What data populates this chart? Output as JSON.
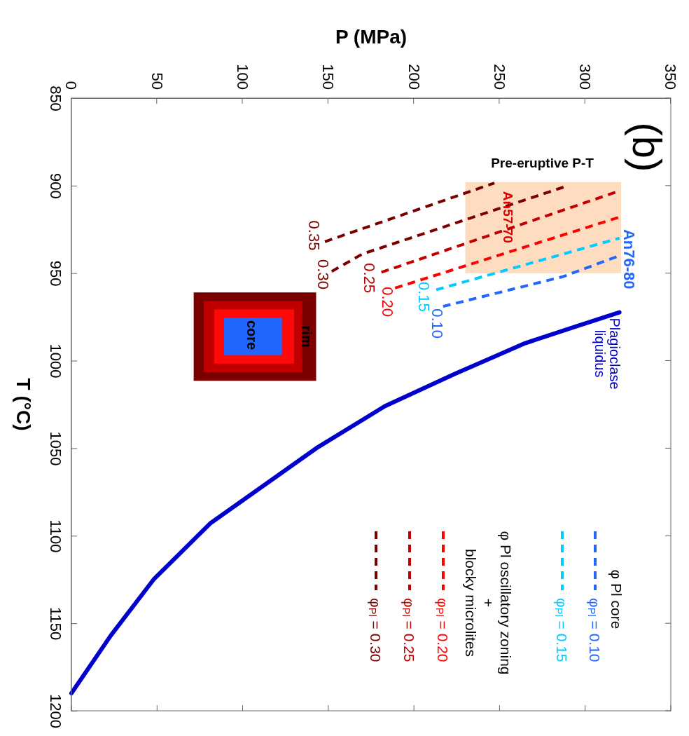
{
  "chart_data": {
    "type": "line",
    "xlabel": "P (MPa)",
    "ylabel": "T (°C)",
    "xlim": [
      0,
      350
    ],
    "ylim": [
      1200,
      850
    ],
    "xticks": [
      0,
      50,
      100,
      150,
      200,
      250,
      300,
      350
    ],
    "yticks": [
      850,
      900,
      950,
      1000,
      1050,
      1100,
      1150,
      1200
    ],
    "legend": "bottom right",
    "legend_title": "φ Pl core",
    "series": [
      {
        "x": [
          230,
          321
        ],
        "values": [
          null,
          null
        ],
        "lower": [
          898,
          898
        ],
        "upper": [
          950,
          950
        ],
        "color": "#fddcc0"
      },
      {
        "name": "φ$_{Pl}$ = 0.10",
        "color": "#2266ff",
        "line_style": "dashed",
        "x": [
          217,
          287,
          320
        ],
        "values": [
          969,
          952,
          940
        ]
      },
      {
        "name": "φ$_{Pl}$ = 0.15",
        "color": "#00ccff",
        "line_style": "dashed",
        "x": [
          213,
          320
        ],
        "values": [
          959.5,
          930
        ]
      },
      {
        "name": "φ$_{Pl}$ = 0.20",
        "color": "#ff0000",
        "line_style": "dashed",
        "x": [
          189,
          320
        ],
        "values": [
          958.5,
          918
        ]
      },
      {
        "name": "φ$_{Pl}$ = 0.25",
        "color": "#c00000",
        "line_style": "dashed",
        "x": [
          181,
          320
        ],
        "values": [
          949.5,
          903
        ]
      },
      {
        "name": "φ$_{Pl}$ = 0.30",
        "color": "#7a0000",
        "line_style": "dashed",
        "x": [
          152,
          170,
          290
        ],
        "values": [
          949,
          939,
          900
        ]
      },
      {
        "color": "#7a0000",
        "line_style": "dashed",
        "x": [
          148,
          247
        ],
        "values": [
          932,
          898.5
        ]
      },
      {
        "color": "#0000cc",
        "line_style": "solid",
        "x": [
          320,
          296,
          265,
          224,
          183,
          143,
          81,
          48,
          23,
          0
        ],
        "values": [
          972.4,
          980,
          990,
          1007.5,
          1026,
          1050,
          1093,
          1125,
          1157,
          1190
        ]
      }
    ],
    "annotations": [
      "(b)",
      "Pre-eruptive P-T",
      "An57-70",
      "An76-80",
      "Plagioclase liquidus",
      "0.35",
      "0.30",
      "0.25",
      "0.20",
      "0.15",
      "0.10",
      "rim",
      "core",
      "φ Pl oscillatory zoning",
      "+",
      "blocky microlites"
    ]
  }
}
